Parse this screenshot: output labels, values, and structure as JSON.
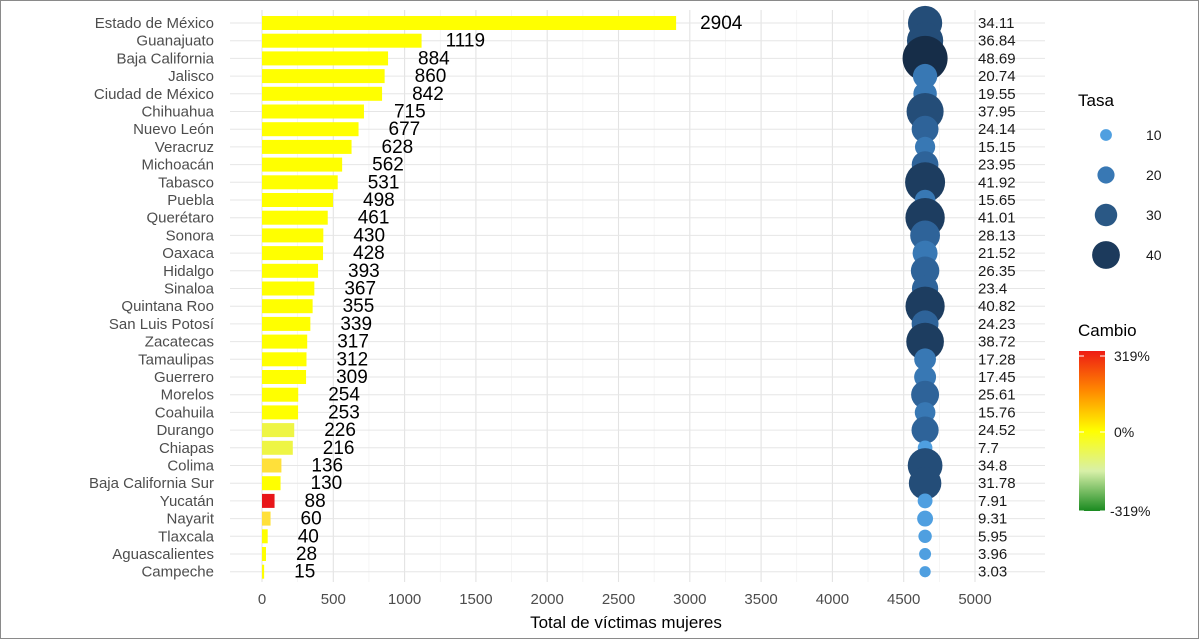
{
  "chart_data": {
    "type": "bar",
    "xlabel": "Total de víctimas mujeres",
    "xlim": [
      0,
      5000
    ],
    "xticks": [
      0,
      500,
      1000,
      1500,
      2000,
      2500,
      3000,
      3500,
      4000,
      4500,
      5000
    ],
    "grid": true,
    "categories": [
      "Estado de México",
      "Guanajuato",
      "Baja California",
      "Jalisco",
      "Ciudad de México",
      "Chihuahua",
      "Nuevo León",
      "Veracruz",
      "Michoacán",
      "Tabasco",
      "Puebla",
      "Querétaro",
      "Sonora",
      "Oaxaca",
      "Hidalgo",
      "Sinaloa",
      "Quintana Roo",
      "San Luis Potosí",
      "Zacatecas",
      "Tamaulipas",
      "Guerrero",
      "Morelos",
      "Coahuila",
      "Durango",
      "Chiapas",
      "Colima",
      "Baja California Sur",
      "Yucatán",
      "Nayarit",
      "Tlaxcala",
      "Aguascalientes",
      "Campeche"
    ],
    "values": [
      2904,
      1119,
      884,
      860,
      842,
      715,
      677,
      628,
      562,
      531,
      498,
      461,
      430,
      428,
      393,
      367,
      355,
      339,
      317,
      312,
      309,
      254,
      253,
      226,
      216,
      136,
      130,
      88,
      60,
      40,
      28,
      15
    ],
    "value_labels": [
      "2904",
      "1119",
      "884",
      "860",
      "842",
      "715",
      "677",
      "628",
      "562",
      "531",
      "498",
      "461",
      "430",
      "428",
      "393",
      "367",
      "355",
      "339",
      "317",
      "312",
      "309",
      "254",
      "253",
      "226",
      "216",
      "136",
      "130",
      "88",
      "60",
      "40",
      "28",
      "15"
    ],
    "tasa": [
      34.11,
      36.84,
      48.69,
      20.74,
      19.55,
      37.95,
      24.14,
      15.15,
      23.95,
      41.92,
      15.65,
      41.01,
      28.13,
      21.52,
      26.35,
      23.4,
      40.82,
      24.23,
      38.72,
      17.28,
      17.45,
      25.61,
      15.76,
      24.52,
      7.7,
      34.8,
      31.78,
      7.91,
      9.31,
      5.95,
      3.96,
      3.03
    ],
    "tasa_labels": [
      "34.11",
      "36.84",
      "48.69",
      "20.74",
      "19.55",
      "37.95",
      "24.14",
      "15.15",
      "23.95",
      "41.92",
      "15.65",
      "41.01",
      "28.13",
      "21.52",
      "26.35",
      "23.4",
      "40.82",
      "24.23",
      "38.72",
      "17.28",
      "17.45",
      "25.61",
      "15.76",
      "24.52",
      "7.7",
      "34.8",
      "31.78",
      "7.91",
      "9.31",
      "5.95",
      "3.96",
      "3.03"
    ],
    "cambio_category": [
      "zero",
      "zero",
      "zero",
      "zero",
      "zero",
      "zero",
      "zero",
      "zero",
      "zero",
      "zero",
      "zero",
      "zero",
      "zero",
      "zero",
      "zero",
      "zero",
      "zero",
      "zero",
      "zero",
      "zero",
      "zero",
      "zero",
      "zero",
      "slight_negative",
      "slight_negative",
      "slight_positive",
      "zero",
      "max_positive",
      "slight_positive",
      "zero",
      "zero",
      "zero"
    ],
    "cambio_colors": {
      "zero": "#ffff00",
      "slight_positive": "#ffe03a",
      "slight_negative": "#eef545",
      "max_positive": "#e8161a"
    },
    "bubble_x": 4650,
    "legend_placement": "right",
    "legend_size": {
      "title": "Tasa",
      "entries": [
        {
          "label": "10",
          "value": 10,
          "color": "#4f9fe0"
        },
        {
          "label": "20",
          "value": 20,
          "color": "#3878b4"
        },
        {
          "label": "30",
          "value": 30,
          "color": "#2a5885"
        },
        {
          "label": "40",
          "value": 40,
          "color": "#1c3a5c"
        }
      ]
    },
    "legend_color": {
      "title": "Cambio",
      "labels": [
        "319%",
        "0%",
        "-319%"
      ],
      "gradient": [
        "#ee1c14",
        "#ff8a00",
        "#ffff00",
        "#d8f0a8",
        "#1a8a20"
      ]
    }
  }
}
